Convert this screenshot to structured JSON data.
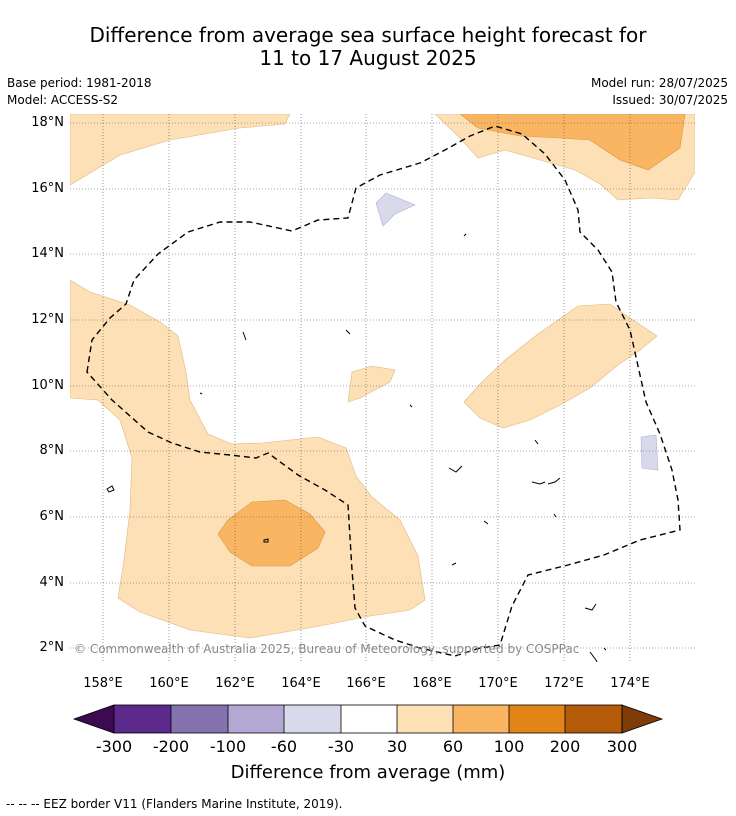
{
  "title_line1": "Difference from average sea surface height forecast for",
  "title_line2": "11 to 17 August 2025",
  "meta": {
    "base_period": "Base period: 1981-2018",
    "model": "Model: ACCESS-S2",
    "model_run": "Model run: 28/07/2025",
    "issued": "Issued: 30/07/2025"
  },
  "copyright": "© Commonwealth of Australia 2025, Bureau of Meteorology, supported by COSPPac",
  "axes": {
    "lat_labels": [
      "18°N",
      "16°N",
      "14°N",
      "12°N",
      "10°N",
      "8°N",
      "6°N",
      "4°N",
      "2°N"
    ],
    "lon_labels": [
      "158°E",
      "160°E",
      "162°E",
      "164°E",
      "166°E",
      "168°E",
      "170°E",
      "172°E",
      "174°E"
    ]
  },
  "colorbar": {
    "label": "Difference from average (mm)",
    "ticks": [
      "-300",
      "-200",
      "-100",
      "-60",
      "-30",
      "30",
      "60",
      "100",
      "200",
      "300"
    ],
    "colors": [
      "#3d0a52",
      "#5b2a8c",
      "#8573b0",
      "#b2a8d3",
      "#d9d9ec",
      "#ffffff",
      "#fde0b5",
      "#f9b562",
      "#e38419",
      "#b45a09",
      "#7f3b08"
    ]
  },
  "footer": "--  --  -- EEZ border V11 (Flanders Marine Institute, 2019)."
}
